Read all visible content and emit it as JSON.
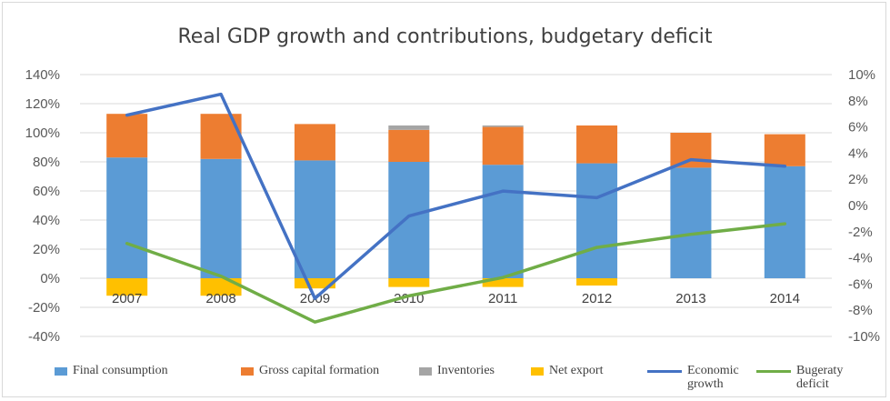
{
  "chart_data": {
    "type": "bar",
    "title": "Real GDP growth and contributions, budgetary deficit",
    "categories": [
      "2007",
      "2008",
      "2009",
      "2010",
      "2011",
      "2012",
      "2013",
      "2014"
    ],
    "y_left": {
      "ylim": [
        -40,
        140
      ],
      "ticks": [
        "140%",
        "120%",
        "100%",
        "80%",
        "60%",
        "40%",
        "20%",
        "0%",
        "-20%",
        "-40%"
      ]
    },
    "y_right": {
      "ylim": [
        -10,
        10
      ],
      "ticks": [
        "10%",
        "8%",
        "6%",
        "4%",
        "2%",
        "0%",
        "-2%",
        "-4%",
        "-6%",
        "-8%",
        "-10%"
      ]
    },
    "bar_series": [
      {
        "name": "Final consumption",
        "color": "#5b9bd5",
        "values": [
          83,
          82,
          81,
          80,
          78,
          79,
          76,
          77
        ]
      },
      {
        "name": "Gross capital formation",
        "color": "#ed7d31",
        "values": [
          30,
          31,
          25,
          22,
          26,
          26,
          24,
          22
        ]
      },
      {
        "name": "Inventories",
        "color": "#a5a5a5",
        "values": [
          0,
          0,
          0,
          3,
          1,
          0,
          0,
          0
        ]
      },
      {
        "name": "Net export",
        "color": "#ffc000",
        "values": [
          -12,
          -12,
          -7,
          -6,
          -6,
          -5,
          0,
          0
        ]
      }
    ],
    "line_series": [
      {
        "name": "Economic growth",
        "color": "#4472c4",
        "axis": "right",
        "values": [
          6.9,
          8.5,
          -7.1,
          -0.8,
          1.1,
          0.6,
          3.5,
          3.0
        ]
      },
      {
        "name": "Bugeraty deficit",
        "color": "#70ad47",
        "axis": "right",
        "values": [
          -2.9,
          -5.4,
          -8.9,
          -6.9,
          -5.5,
          -3.2,
          -2.2,
          -1.4
        ]
      }
    ],
    "legend": {
      "position": "bottom",
      "items": [
        "Final consumption",
        "Gross capital formation",
        "Inventories",
        "Net export",
        "Economic growth",
        "Bugeraty deficit"
      ]
    }
  }
}
